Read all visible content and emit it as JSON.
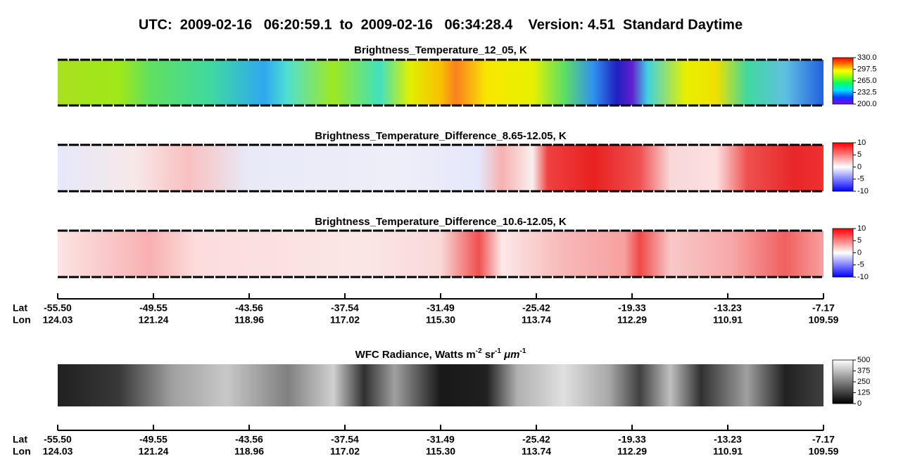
{
  "title": "UTC:  2009-02-16   06:20:59.1  to  2009-02-16   06:34:28.4    Version: 4.51  Standard Daytime",
  "chart_data": [
    {
      "type": "image",
      "title": "Brightness_Temperature_12_05, K",
      "colorbar": {
        "colormap": "rainbow",
        "clim": [
          200,
          330
        ],
        "ticks": [
          {
            "value": 330,
            "label": "330.0"
          },
          {
            "value": 297.5,
            "label": "297.5"
          },
          {
            "value": 265,
            "label": "265.0"
          },
          {
            "value": 232.5,
            "label": "232.5"
          },
          {
            "value": 200,
            "label": "200.0"
          }
        ]
      }
    },
    {
      "type": "image",
      "title": "Brightness_Temperature_Difference_8.65-12.05, K",
      "colorbar": {
        "colormap": "bwr",
        "clim": [
          -10,
          10
        ],
        "ticks": [
          10,
          5,
          0,
          -5,
          -10
        ]
      }
    },
    {
      "type": "image",
      "title": "Brightness_Temperature_Difference_10.6-12.05, K",
      "colorbar": {
        "colormap": "bwr",
        "clim": [
          -10,
          10
        ],
        "ticks": [
          10,
          5,
          0,
          -5,
          -10
        ]
      }
    },
    {
      "type": "image",
      "title_parts": [
        "WFC Radiance, Watts m",
        "-2",
        " sr",
        "-1",
        " μm",
        "-1"
      ],
      "colorbar": {
        "colormap": "gray",
        "clim": [
          0,
          500
        ],
        "ticks": [
          500,
          375,
          250,
          125,
          0
        ]
      }
    }
  ],
  "axes": [
    {
      "row_labels": [
        "Lat",
        "Lon"
      ],
      "rows": [
        [
          "-55.50",
          "-49.55",
          "-43.56",
          "-37.54",
          "-31.49",
          "-25.42",
          "-19.33",
          "-13.23",
          "-7.17"
        ],
        [
          "124.03",
          "121.24",
          "118.96",
          "117.02",
          "115.30",
          "113.74",
          "112.29",
          "110.91",
          "109.59"
        ]
      ]
    },
    {
      "row_labels": [
        "Lat",
        "Lon"
      ],
      "rows": [
        [
          "-55.50",
          "-49.55",
          "-43.56",
          "-37.54",
          "-31.49",
          "-25.42",
          "-19.33",
          "-13.23",
          "-7.17"
        ],
        [
          "124.03",
          "121.24",
          "118.96",
          "117.02",
          "115.30",
          "113.74",
          "112.29",
          "110.91",
          "109.59"
        ]
      ]
    }
  ]
}
